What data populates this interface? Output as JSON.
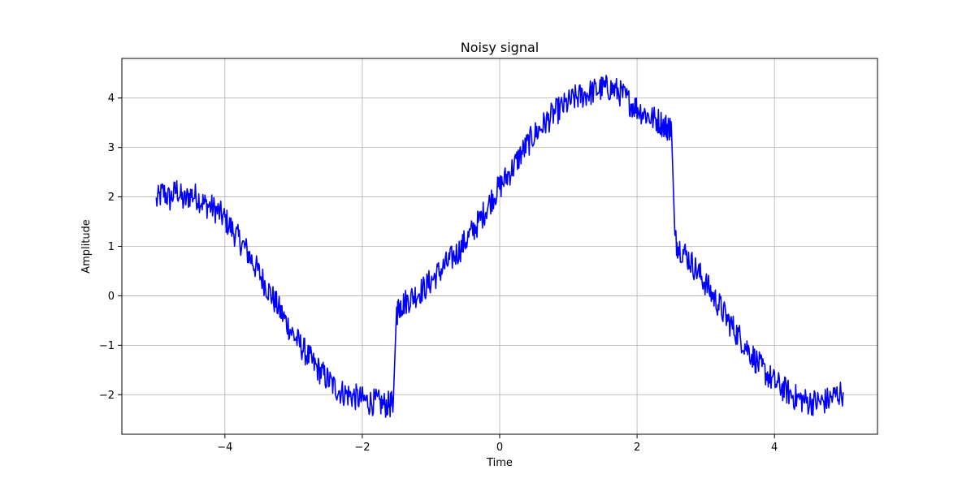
{
  "chart_data": {
    "type": "line",
    "title": "Noisy signal",
    "xlabel": "Time",
    "ylabel": "Amplitude",
    "xlim": [
      -5.5,
      5.5
    ],
    "ylim": [
      -2.8,
      4.8
    ],
    "xticks": [
      -4,
      -2,
      0,
      2,
      4
    ],
    "yticks": [
      -2,
      -1,
      0,
      1,
      2,
      3,
      4
    ],
    "xtick_labels": [
      "−4",
      "−2",
      "0",
      "2",
      "4"
    ],
    "ytick_labels": [
      "−2",
      "−1",
      "0",
      "1",
      "2",
      "3",
      "4"
    ],
    "grid": true,
    "series": [
      {
        "color": "#0000ff",
        "x": [
          -5.0,
          -4.9,
          -4.8,
          -4.7,
          -4.6,
          -4.5,
          -4.4,
          -4.3,
          -4.2,
          -4.1,
          -4.0,
          -3.9,
          -3.8,
          -3.7,
          -3.6,
          -3.5,
          -3.4,
          -3.3,
          -3.2,
          -3.1,
          -3.0,
          -2.9,
          -2.8,
          -2.7,
          -2.6,
          -2.5,
          -2.4,
          -2.3,
          -2.2,
          -2.1,
          -2.0,
          -1.9,
          -1.8,
          -1.7,
          -1.6,
          -1.55,
          -1.5,
          -1.45,
          -1.4,
          -1.3,
          -1.2,
          -1.1,
          -1.0,
          -0.9,
          -0.8,
          -0.7,
          -0.6,
          -0.5,
          -0.4,
          -0.3,
          -0.2,
          -0.1,
          0.0,
          0.1,
          0.2,
          0.3,
          0.4,
          0.5,
          0.6,
          0.7,
          0.8,
          0.9,
          1.0,
          1.1,
          1.2,
          1.3,
          1.4,
          1.5,
          1.6,
          1.7,
          1.8,
          1.9,
          2.0,
          2.1,
          2.2,
          2.3,
          2.4,
          2.45,
          2.5,
          2.55,
          2.6,
          2.7,
          2.8,
          2.9,
          3.0,
          3.1,
          3.2,
          3.3,
          3.4,
          3.5,
          3.6,
          3.7,
          3.8,
          3.9,
          4.0,
          4.1,
          4.2,
          4.3,
          4.4,
          4.5,
          4.6,
          4.7,
          4.8,
          4.9,
          5.0
        ],
        "y": [
          1.9,
          2.1,
          1.95,
          2.15,
          1.9,
          2.05,
          2.0,
          1.85,
          1.8,
          1.7,
          1.55,
          1.35,
          1.15,
          0.95,
          0.7,
          0.45,
          0.2,
          -0.05,
          -0.3,
          -0.55,
          -0.8,
          -1.0,
          -1.2,
          -1.4,
          -1.55,
          -1.7,
          -1.85,
          -1.95,
          -2.0,
          -2.05,
          -2.1,
          -2.15,
          -2.15,
          -2.2,
          -2.2,
          -2.2,
          -0.35,
          -0.2,
          -0.15,
          -0.05,
          0.05,
          0.15,
          0.3,
          0.45,
          0.6,
          0.75,
          0.9,
          1.1,
          1.3,
          1.5,
          1.75,
          2.0,
          2.2,
          2.4,
          2.6,
          2.85,
          3.05,
          3.25,
          3.4,
          3.55,
          3.7,
          3.8,
          3.9,
          4.0,
          4.05,
          4.1,
          4.15,
          4.2,
          4.2,
          4.15,
          4.05,
          3.9,
          3.8,
          3.7,
          3.6,
          3.55,
          3.45,
          3.4,
          3.4,
          1.15,
          1.0,
          0.85,
          0.65,
          0.45,
          0.25,
          0.0,
          -0.2,
          -0.45,
          -0.65,
          -0.85,
          -1.05,
          -1.25,
          -1.45,
          -1.6,
          -1.75,
          -1.85,
          -1.95,
          -2.05,
          -2.1,
          -2.15,
          -2.15,
          -2.15,
          -2.1,
          -2.0,
          -1.95
        ]
      }
    ]
  }
}
